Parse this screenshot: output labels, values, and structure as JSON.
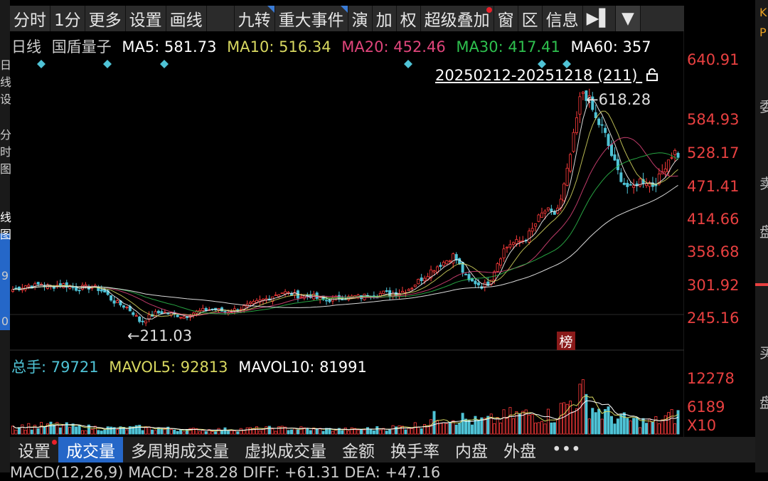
{
  "toolbar": {
    "items": [
      "分时",
      "1分",
      "更多",
      "设置",
      "画线",
      "",
      "九转",
      "重大事件",
      "演",
      "加",
      "权",
      "超级叠加",
      "窗",
      "区",
      "信息",
      "▶▌"
    ],
    "drop_icon": "▼"
  },
  "info_line": {
    "period": "日线",
    "name": "国盾量子",
    "ma5": "MA5: 581.73",
    "ma10": "MA10: 516.34",
    "ma20": "MA20: 452.46",
    "ma30": "MA30: 417.41",
    "ma60": "MA60: 357"
  },
  "colors": {
    "up": "#ff3b3b",
    "down": "#4fc3d6",
    "ma5": "#ffffff",
    "ma10": "#d8d860",
    "ma20": "#e0457b",
    "ma30": "#2ec04e",
    "ma60": "#ffffff"
  },
  "range_label": "20250212-20251218 (211)",
  "lock_icon": "lock-icon",
  "price_axis": [
    "640.91",
    "584.93",
    "528.17",
    "471.41",
    "414.66",
    "358.68",
    "301.92",
    "245.16"
  ],
  "high_label": "618.28",
  "low_label": "211.03",
  "bang_label": "榜",
  "volume_info": {
    "total": "总手: 79721",
    "mavol5": "MAVOL5: 92813",
    "mavol10": "MAVOL10: 81991"
  },
  "volume_axis": [
    "12278",
    "6189",
    "X10"
  ],
  "tabs": [
    "设置",
    "成交量",
    "多周期成交量",
    "虚拟成交量",
    "金额",
    "换手率",
    "内盘",
    "外盘",
    "•••"
  ],
  "active_tab": "成交量",
  "macd_line": "MACD(12,26,9)  MACD: +28.28  DIFF: +61.31  DEA: +47.16",
  "right_strip": [
    "K",
    "P",
    "委",
    "卖",
    "盘",
    "买",
    "盘"
  ],
  "left_strip": [
    "日",
    "线",
    "设",
    "分",
    "时",
    "图",
    "线",
    "图",
    "9",
    "0"
  ],
  "chart_data": {
    "type": "candlestick",
    "title": "国盾量子 日线",
    "ylim": [
      211.03,
      640.91
    ],
    "high": 618.28,
    "low": 211.03,
    "close_points": [
      [
        0,
        287
      ],
      [
        10,
        290
      ],
      [
        20,
        294
      ],
      [
        30,
        292
      ],
      [
        40,
        296
      ],
      [
        50,
        290
      ],
      [
        60,
        293
      ],
      [
        70,
        295
      ],
      [
        80,
        292
      ],
      [
        90,
        288
      ],
      [
        100,
        290
      ],
      [
        110,
        291
      ],
      [
        120,
        288
      ],
      [
        130,
        282
      ],
      [
        140,
        270
      ],
      [
        150,
        264
      ],
      [
        160,
        260
      ],
      [
        170,
        250
      ],
      [
        180,
        236
      ],
      [
        190,
        244
      ],
      [
        200,
        250
      ],
      [
        210,
        252
      ],
      [
        220,
        250
      ],
      [
        230,
        248
      ],
      [
        240,
        245
      ],
      [
        250,
        250
      ],
      [
        260,
        253
      ],
      [
        270,
        255
      ],
      [
        280,
        257
      ],
      [
        290,
        255
      ],
      [
        300,
        252
      ],
      [
        310,
        255
      ],
      [
        320,
        258
      ],
      [
        330,
        262
      ],
      [
        340,
        266
      ],
      [
        350,
        270
      ],
      [
        360,
        274
      ],
      [
        370,
        280
      ],
      [
        380,
        283
      ],
      [
        390,
        280
      ],
      [
        400,
        278
      ],
      [
        410,
        276
      ],
      [
        420,
        278
      ],
      [
        430,
        272
      ],
      [
        440,
        270
      ],
      [
        450,
        272
      ],
      [
        460,
        275
      ],
      [
        470,
        274
      ],
      [
        480,
        276
      ],
      [
        490,
        275
      ],
      [
        500,
        280
      ],
      [
        510,
        278
      ],
      [
        520,
        282
      ],
      [
        530,
        280
      ],
      [
        540,
        282
      ],
      [
        550,
        285
      ],
      [
        560,
        290
      ],
      [
        570,
        300
      ],
      [
        580,
        308
      ],
      [
        590,
        318
      ],
      [
        600,
        325
      ],
      [
        610,
        332
      ],
      [
        620,
        340
      ],
      [
        630,
        320
      ],
      [
        640,
        300
      ],
      [
        650,
        298
      ],
      [
        660,
        292
      ],
      [
        670,
        298
      ],
      [
        680,
        325
      ],
      [
        690,
        348
      ],
      [
        700,
        358
      ],
      [
        710,
        360
      ],
      [
        720,
        364
      ],
      [
        730,
        378
      ],
      [
        740,
        398
      ],
      [
        750,
        410
      ],
      [
        760,
        400
      ],
      [
        770,
        420
      ],
      [
        780,
        470
      ],
      [
        790,
        530
      ],
      [
        800,
        595
      ],
      [
        810,
        580
      ],
      [
        820,
        548
      ],
      [
        830,
        535
      ],
      [
        840,
        500
      ],
      [
        850,
        470
      ],
      [
        860,
        450
      ],
      [
        870,
        440
      ],
      [
        880,
        455
      ],
      [
        890,
        455
      ],
      [
        900,
        448
      ],
      [
        910,
        460
      ],
      [
        920,
        485
      ],
      [
        930,
        500
      ],
      [
        940,
        490
      ],
      [
        950,
        493
      ]
    ],
    "volume_points": [
      [
        0,
        1800
      ],
      [
        30,
        1700
      ],
      [
        60,
        2000
      ],
      [
        90,
        1500
      ],
      [
        120,
        1400
      ],
      [
        150,
        1200
      ],
      [
        180,
        1400
      ],
      [
        210,
        1200
      ],
      [
        240,
        1000
      ],
      [
        270,
        900
      ],
      [
        300,
        1000
      ],
      [
        330,
        1100
      ],
      [
        360,
        1200
      ],
      [
        390,
        1300
      ],
      [
        420,
        1100
      ],
      [
        450,
        1000
      ],
      [
        480,
        1000
      ],
      [
        510,
        1200
      ],
      [
        540,
        1500
      ],
      [
        570,
        2000
      ],
      [
        600,
        4000
      ],
      [
        630,
        3600
      ],
      [
        650,
        2800
      ],
      [
        680,
        3200
      ],
      [
        700,
        4200
      ],
      [
        730,
        4400
      ],
      [
        760,
        4000
      ],
      [
        780,
        6800
      ],
      [
        790,
        8200
      ],
      [
        800,
        9000
      ],
      [
        815,
        6000
      ],
      [
        830,
        4800
      ],
      [
        850,
        3600
      ],
      [
        870,
        3000
      ],
      [
        900,
        2600
      ],
      [
        920,
        3800
      ],
      [
        940,
        4200
      ],
      [
        950,
        3600
      ]
    ]
  }
}
